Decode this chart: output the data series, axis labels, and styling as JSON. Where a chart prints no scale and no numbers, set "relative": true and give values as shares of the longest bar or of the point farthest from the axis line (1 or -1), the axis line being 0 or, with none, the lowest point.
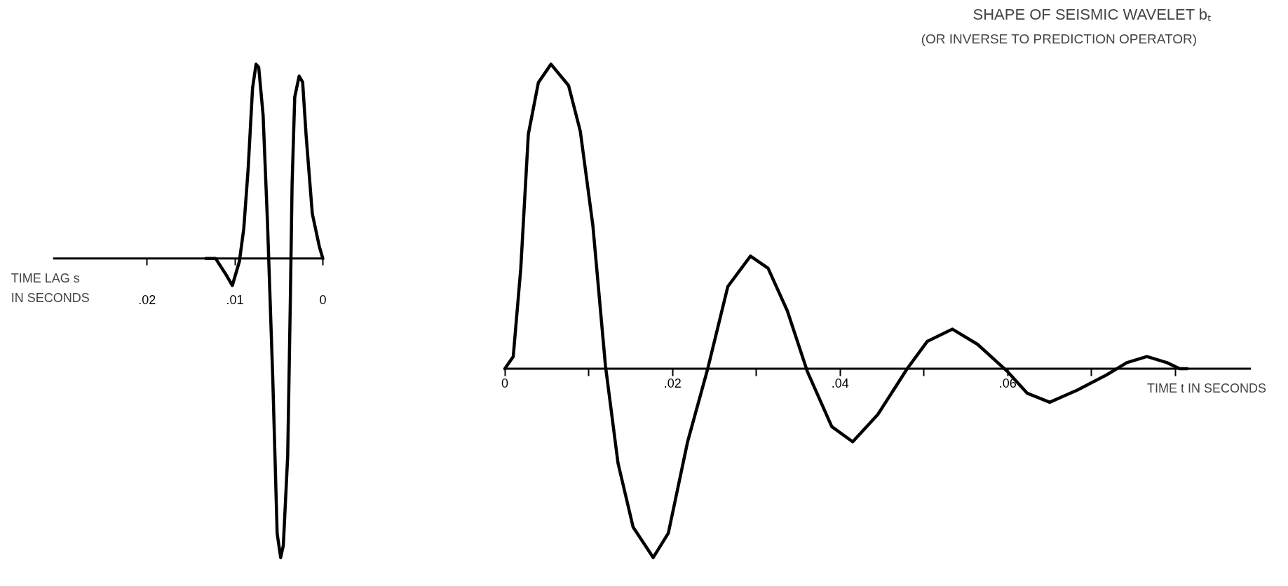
{
  "chart_data": [
    {
      "type": "line",
      "relative": true,
      "xlabel": "TIME LAG s\nIN SECONDS",
      "xlim": [
        0.0307,
        0
      ],
      "xticks": [
        0,
        {
          "value": 0.01,
          "label": ".01"
        },
        {
          "value": 0.02,
          "label": ".02"
        }
      ],
      "x": [
        0,
        0.0004,
        0.0012,
        0.0019,
        0.0023,
        0.0027,
        0.0032,
        0.0035,
        0.0037,
        0.004,
        0.0045,
        0.0048,
        0.0052,
        0.0057,
        0.0063,
        0.0068,
        0.0073,
        0.0076,
        0.008,
        0.0085,
        0.009,
        0.0095,
        0.0103,
        0.0111,
        0.0122,
        0.0133
      ],
      "series": [
        {
          "color": "#000000",
          "values": [
            0,
            0.04,
            0.15,
            0.41,
            0.59,
            0.61,
            0.54,
            0.25,
            -0.14,
            -0.66,
            -0.96,
            -1,
            -0.92,
            -0.4,
            0.12,
            0.48,
            0.64,
            0.65,
            0.57,
            0.3,
            0.1,
            -0.01,
            -0.09,
            -0.05,
            0,
            0
          ]
        }
      ]
    },
    {
      "type": "line",
      "relative": true,
      "title": "SHAPE OF SEISMIC WAVELET bₜ",
      "subtitle": "(OR INVERSE TO PREDICTION OPERATOR)",
      "xlabel": "TIME t IN SECONDS",
      "xlim": [
        0,
        0.089
      ],
      "xticks": [
        0,
        {
          "value": 0.01,
          "label": null
        },
        {
          "value": 0.02,
          "label": ".02"
        },
        {
          "value": 0.03,
          "label": null
        },
        {
          "value": 0.04,
          "label": ".04"
        },
        {
          "value": 0.05,
          "label": null
        },
        {
          "value": 0.06,
          "label": ".06"
        },
        {
          "value": 0.07,
          "label": null
        },
        {
          "value": 0.08,
          "label": null
        }
      ],
      "x": [
        0,
        0.001,
        0.0019,
        0.0028,
        0.004,
        0.0055,
        0.0076,
        0.009,
        0.0105,
        0.012,
        0.0135,
        0.0153,
        0.0177,
        0.0195,
        0.0218,
        0.0242,
        0.0266,
        0.0293,
        0.0314,
        0.0337,
        0.0361,
        0.039,
        0.0415,
        0.0445,
        0.048,
        0.0504,
        0.0534,
        0.0564,
        0.06,
        0.0623,
        0.065,
        0.0683,
        0.0718,
        0.0742,
        0.0766,
        0.079,
        0.0805,
        0.0814
      ],
      "series": [
        {
          "color": "#000000",
          "values": [
            0,
            0.04,
            0.33,
            0.77,
            0.94,
            1,
            0.93,
            0.78,
            0.47,
            0.01,
            -0.31,
            -0.52,
            -0.62,
            -0.54,
            -0.24,
            0,
            0.27,
            0.37,
            0.33,
            0.19,
            -0.01,
            -0.19,
            -0.24,
            -0.15,
            0,
            0.09,
            0.13,
            0.08,
            -0.01,
            -0.08,
            -0.11,
            -0.07,
            -0.02,
            0.02,
            0.04,
            0.02,
            0,
            0
          ]
        }
      ]
    }
  ]
}
